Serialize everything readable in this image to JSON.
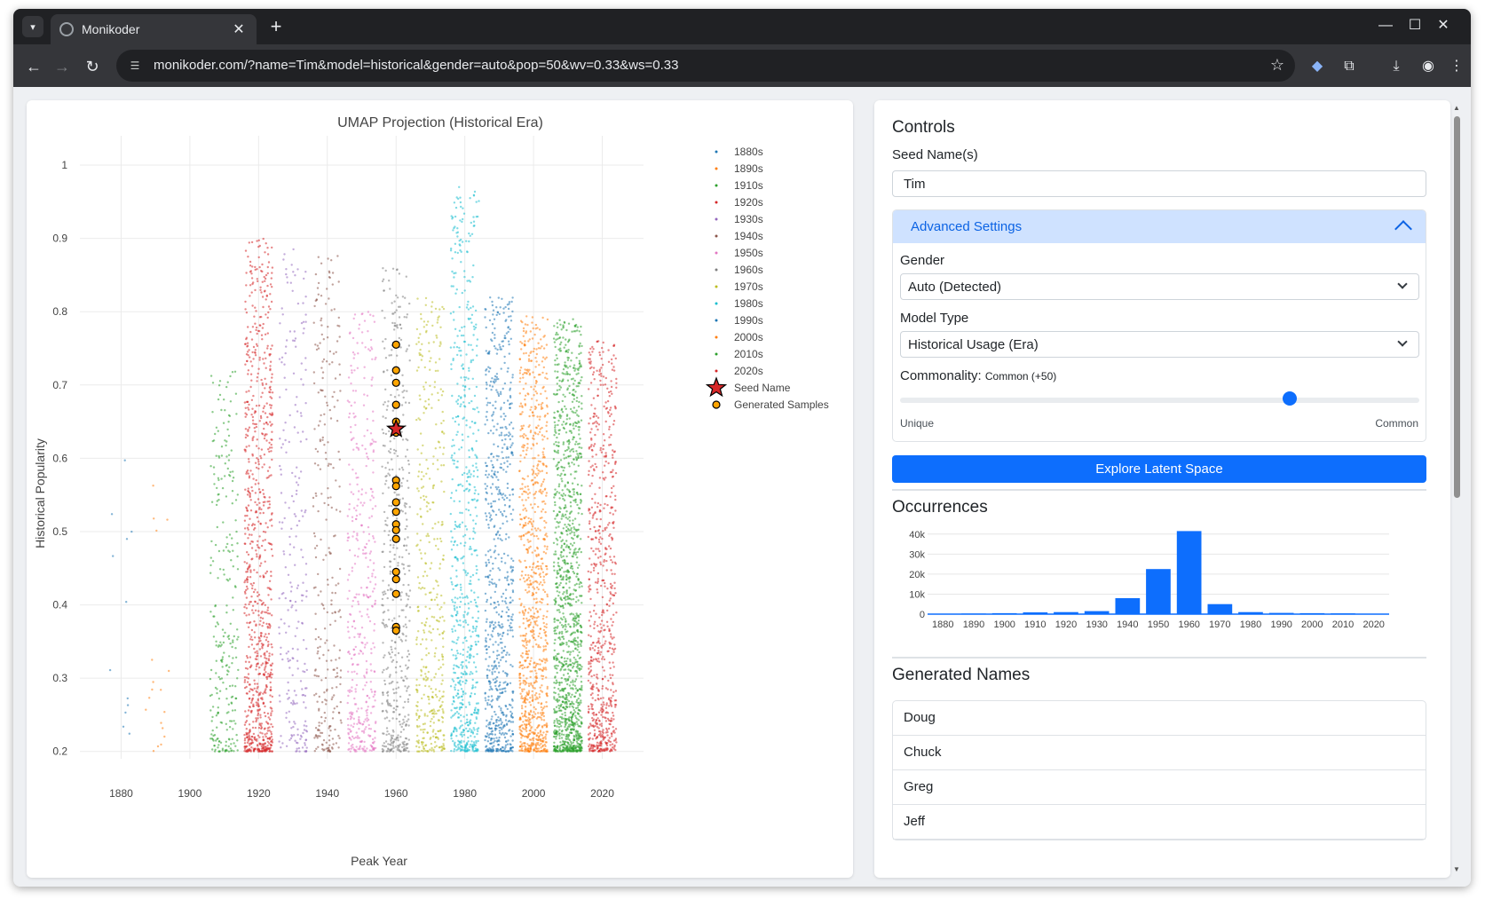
{
  "browser": {
    "tab_title": "Monikoder",
    "url": "monikoder.com/?name=Tim&model=historical&gender=auto&pop=50&wv=0.33&ws=0.33",
    "new_tab": "+",
    "tab_close": "✕",
    "minimize": "—",
    "maximize": "☐",
    "close": "✕"
  },
  "chart_data": [
    {
      "type": "scatter",
      "title": "UMAP Projection (Historical Era)",
      "xlabel": "Peak Year",
      "ylabel": "Historical Popularity",
      "xlim": [
        1868,
        2032
      ],
      "ylim": [
        0.19,
        1.04
      ],
      "x_ticks": [
        1880,
        1900,
        1920,
        1940,
        1960,
        1980,
        2000,
        2020
      ],
      "y_ticks": [
        0.2,
        0.3,
        0.4,
        0.5,
        0.6,
        0.7,
        0.8,
        0.9,
        1
      ],
      "grid": true,
      "legend_position": "right",
      "series": [
        {
          "name": "1880s",
          "color": "#1f77b4",
          "x_center": 1880,
          "y_range": [
            0.2,
            0.6
          ],
          "density": 12
        },
        {
          "name": "1890s",
          "color": "#ff7f0e",
          "x_center": 1890,
          "y_range": [
            0.2,
            0.6
          ],
          "density": 18
        },
        {
          "name": "1910s",
          "color": "#2ca02c",
          "x_center": 1910,
          "y_range": [
            0.2,
            0.72
          ],
          "density": 260
        },
        {
          "name": "1920s",
          "color": "#d62728",
          "x_center": 1920,
          "y_range": [
            0.2,
            0.9
          ],
          "density": 900
        },
        {
          "name": "1930s",
          "color": "#9467bd",
          "x_center": 1930,
          "y_range": [
            0.2,
            0.89
          ],
          "density": 240
        },
        {
          "name": "1940s",
          "color": "#8c564b",
          "x_center": 1940,
          "y_range": [
            0.2,
            0.88
          ],
          "density": 280
        },
        {
          "name": "1950s",
          "color": "#e377c2",
          "x_center": 1950,
          "y_range": [
            0.2,
            0.8
          ],
          "density": 420
        },
        {
          "name": "1960s",
          "color": "#7f7f7f",
          "x_center": 1960,
          "y_range": [
            0.2,
            0.86
          ],
          "density": 480
        },
        {
          "name": "1970s",
          "color": "#bcbd22",
          "x_center": 1970,
          "y_range": [
            0.2,
            0.82
          ],
          "density": 420
        },
        {
          "name": "1980s",
          "color": "#17becf",
          "x_center": 1980,
          "y_range": [
            0.2,
            0.97
          ],
          "density": 700
        },
        {
          "name": "1990s",
          "color": "#1f77b4",
          "x_center": 1990,
          "y_range": [
            0.2,
            0.82
          ],
          "density": 750
        },
        {
          "name": "2000s",
          "color": "#ff7f0e",
          "x_center": 2000,
          "y_range": [
            0.2,
            0.8
          ],
          "density": 950
        },
        {
          "name": "2010s",
          "color": "#2ca02c",
          "x_center": 2010,
          "y_range": [
            0.2,
            0.79
          ],
          "density": 1300
        },
        {
          "name": "2020s",
          "color": "#d62728",
          "x_center": 2020,
          "y_range": [
            0.2,
            0.76
          ],
          "density": 700
        }
      ],
      "seed_name": {
        "name": "Seed Name",
        "x": 1960,
        "y": 0.64,
        "color": "#d62728"
      },
      "generated_samples": {
        "name": "Generated Samples",
        "color": "#ffa500",
        "x": 1960,
        "y": [
          0.755,
          0.72,
          0.703,
          0.673,
          0.65,
          0.642,
          0.635,
          0.57,
          0.562,
          0.54,
          0.527,
          0.51,
          0.502,
          0.49,
          0.445,
          0.435,
          0.415,
          0.37,
          0.365
        ]
      }
    },
    {
      "type": "bar",
      "title": "",
      "categories": [
        "1880",
        "1890",
        "1900",
        "1910",
        "1920",
        "1930",
        "1940",
        "1950",
        "1960",
        "1970",
        "1980",
        "1990",
        "2000",
        "2010",
        "2020"
      ],
      "values": [
        200,
        300,
        500,
        900,
        1000,
        1500,
        8000,
        22500,
        41500,
        5000,
        1000,
        600,
        500,
        400,
        200
      ],
      "y_ticks": [
        0,
        10000,
        20000,
        30000,
        40000
      ],
      "y_tick_labels": [
        "0",
        "10k",
        "20k",
        "30k",
        "40k"
      ],
      "ylim": [
        0,
        43000
      ],
      "color": "#0d6efd"
    }
  ],
  "controls": {
    "title": "Controls",
    "seed_label": "Seed Name(s)",
    "seed_value": "Tim",
    "advanced_label": "Advanced Settings",
    "gender_label": "Gender",
    "gender_value": "Auto (Detected)",
    "model_label": "Model Type",
    "model_value": "Historical Usage (Era)",
    "commonality_label": "Commonality:",
    "commonality_value": "Common (+50)",
    "slider_min_label": "Unique",
    "slider_max_label": "Common",
    "slider_value": 50,
    "slider_min": -100,
    "slider_max": 100,
    "explore_label": "Explore Latent Space",
    "occurrences_title": "Occurrences",
    "generated_title": "Generated Names",
    "generated_names": [
      "Doug",
      "Chuck",
      "Greg",
      "Jeff"
    ]
  }
}
